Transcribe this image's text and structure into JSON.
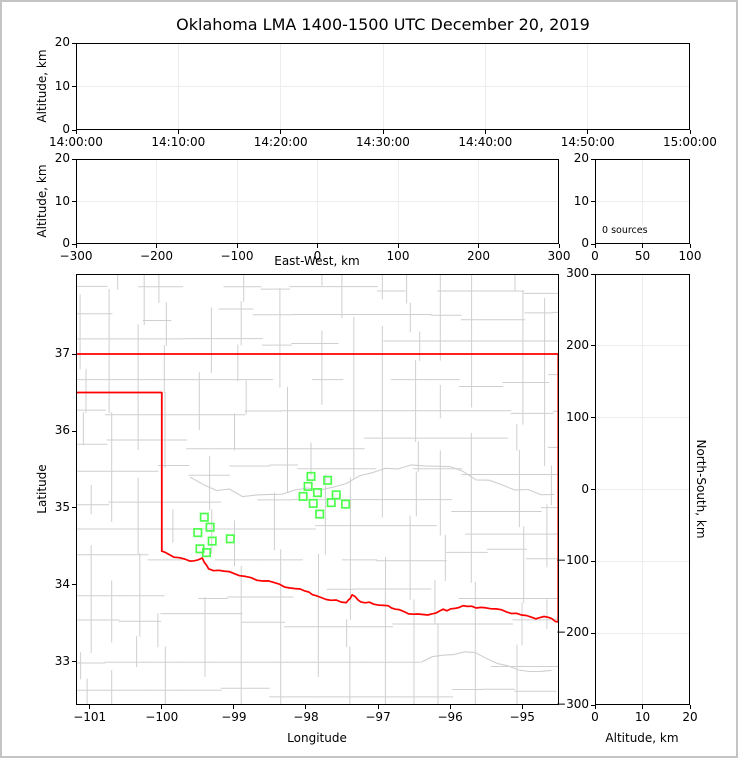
{
  "title": "Oklahoma LMA 1400-1500 UTC December 20, 2019",
  "colors": {
    "figure_border": "#c4c4c4",
    "axis": "#000000",
    "gridline": "#ededed",
    "county_line": "#cfcfcf",
    "state_border": "#ff0000",
    "station_marker": "#4dff4d"
  },
  "panels": {
    "time_height": {
      "ylabel": "Altitude, km",
      "yticks_top_to_bottom": [
        "20",
        "10",
        "0"
      ],
      "xticks": [
        "14:00:00",
        "14:10:00",
        "14:20:00",
        "14:30:00",
        "14:40:00",
        "14:50:00",
        "15:00:00"
      ]
    },
    "ew_height": {
      "ylabel": "Altitude, km",
      "xlabel": "East-West, km",
      "yticks_top_to_bottom": [
        "20",
        "10",
        "0"
      ],
      "xticks": [
        "−300",
        "−200",
        "−100",
        "0",
        "100",
        "200",
        "300"
      ]
    },
    "alt_histogram": {
      "annotation": "0 sources",
      "yticks_top_to_bottom": [
        "20",
        "10",
        "0"
      ],
      "xticks": [
        "0",
        "50",
        "100"
      ]
    },
    "plan_map": {
      "ylabel": "Latitude",
      "xlabel": "Longitude",
      "yticks_top_to_bottom": [
        "37",
        "36",
        "35",
        "34",
        "33"
      ],
      "xticks": [
        "−101",
        "−100",
        "−99",
        "−98",
        "−97",
        "−96",
        "−95"
      ]
    },
    "ns_height": {
      "ylabel": "North-South, km",
      "xlabel": "Altitude, km",
      "yticks_top_to_bottom": [
        "300",
        "200",
        "100",
        "0",
        "−100",
        "−200",
        "−300"
      ],
      "xticks": [
        "0",
        "10",
        "20"
      ]
    }
  },
  "chart_data": {
    "type": "scatter",
    "title": "Oklahoma LMA 1400-1500 UTC December 20, 2019",
    "source_count": 0,
    "time_range_utc": [
      "14:00:00",
      "15:00:00"
    ],
    "altitude_axis_km": [
      0,
      20
    ],
    "east_west_axis_km": [
      -300,
      300
    ],
    "north_south_axis_km": [
      -300,
      300
    ],
    "map_lon_lim": [
      -101.19,
      -94.49
    ],
    "map_lat_lim": [
      32.44,
      38.04
    ],
    "lma_stations_lon_lat": [
      [
        -97.93,
        35.41
      ],
      [
        -97.7,
        35.36
      ],
      [
        -97.97,
        35.28
      ],
      [
        -97.84,
        35.2
      ],
      [
        -98.04,
        35.15
      ],
      [
        -97.58,
        35.17
      ],
      [
        -97.9,
        35.06
      ],
      [
        -97.65,
        35.07
      ],
      [
        -97.45,
        35.05
      ],
      [
        -97.81,
        34.92
      ],
      [
        -99.41,
        34.88
      ],
      [
        -99.33,
        34.75
      ],
      [
        -99.5,
        34.68
      ],
      [
        -99.3,
        34.57
      ],
      [
        -99.05,
        34.6
      ],
      [
        -99.47,
        34.47
      ],
      [
        -99.38,
        34.42
      ]
    ],
    "oklahoma_border": {
      "north_border_lat": 37.0,
      "north_border_lon_lat": [
        [
          -101.19,
          37.0
        ],
        [
          -94.49,
          37.0
        ]
      ],
      "panhandle_lon_lat": [
        [
          -101.19,
          36.5
        ],
        [
          -100.0,
          36.5
        ],
        [
          -100.0,
          34.44
        ]
      ],
      "east_border_lon_lat": [
        [
          -94.5,
          37.0
        ],
        [
          -94.5,
          33.52
        ]
      ],
      "red_river_lon_lat": [
        [
          -100.0,
          34.44
        ],
        [
          -99.83,
          34.36
        ],
        [
          -99.61,
          34.31
        ],
        [
          -99.44,
          34.35
        ],
        [
          -99.35,
          34.21
        ],
        [
          -99.14,
          34.18
        ],
        [
          -98.92,
          34.12
        ],
        [
          -98.68,
          34.06
        ],
        [
          -98.44,
          34.03
        ],
        [
          -98.22,
          33.96
        ],
        [
          -98.01,
          33.92
        ],
        [
          -97.86,
          33.86
        ],
        [
          -97.65,
          33.8
        ],
        [
          -97.44,
          33.77
        ],
        [
          -97.36,
          33.87
        ],
        [
          -97.24,
          33.78
        ],
        [
          -97.06,
          33.75
        ],
        [
          -96.86,
          33.73
        ],
        [
          -96.71,
          33.68
        ],
        [
          -96.51,
          33.62
        ],
        [
          -96.31,
          33.61
        ],
        [
          -96.15,
          33.66
        ],
        [
          -95.99,
          33.69
        ],
        [
          -95.82,
          33.73
        ],
        [
          -95.64,
          33.7
        ],
        [
          -95.43,
          33.69
        ],
        [
          -95.22,
          33.65
        ],
        [
          -95.01,
          33.61
        ],
        [
          -94.81,
          33.56
        ],
        [
          -94.64,
          33.58
        ],
        [
          -94.49,
          33.52
        ]
      ]
    }
  }
}
